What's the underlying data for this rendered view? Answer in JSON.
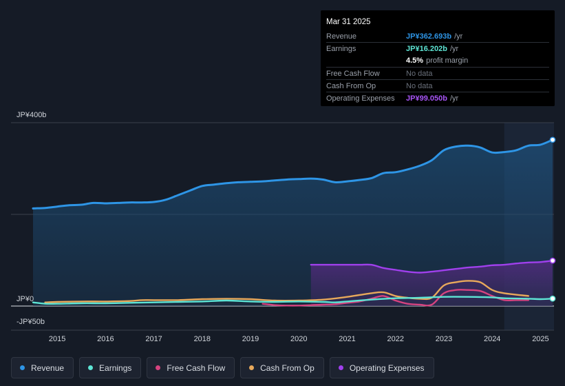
{
  "chart_data": {
    "type": "line",
    "y_unit_labels": [
      "JP¥400b",
      "JP¥0",
      "-JP¥50b"
    ],
    "ylim": [
      -50,
      400
    ],
    "xlim": [
      2014.5,
      2025.25
    ],
    "x_tick_labels": [
      "2015",
      "2016",
      "2017",
      "2018",
      "2019",
      "2020",
      "2021",
      "2022",
      "2023",
      "2024",
      "2025"
    ],
    "x_ticks": [
      2015,
      2016,
      2017,
      2018,
      2019,
      2020,
      2021,
      2022,
      2023,
      2024,
      2025
    ],
    "highlight_start": 2024.25,
    "series": [
      {
        "name": "Revenue",
        "color": "#2e95e6",
        "area": true,
        "points": [
          [
            2014.5,
            213
          ],
          [
            2014.75,
            214
          ],
          [
            2015.0,
            217
          ],
          [
            2015.25,
            220
          ],
          [
            2015.5,
            221
          ],
          [
            2015.75,
            225
          ],
          [
            2016.0,
            224
          ],
          [
            2016.25,
            225
          ],
          [
            2016.5,
            226
          ],
          [
            2016.75,
            226
          ],
          [
            2017.0,
            227
          ],
          [
            2017.25,
            232
          ],
          [
            2017.5,
            242
          ],
          [
            2017.75,
            252
          ],
          [
            2018.0,
            262
          ],
          [
            2018.25,
            265
          ],
          [
            2018.5,
            268
          ],
          [
            2018.75,
            270
          ],
          [
            2019.0,
            271
          ],
          [
            2019.25,
            272
          ],
          [
            2019.5,
            274
          ],
          [
            2019.75,
            276
          ],
          [
            2020.0,
            277
          ],
          [
            2020.25,
            278
          ],
          [
            2020.5,
            276
          ],
          [
            2020.75,
            270
          ],
          [
            2021.0,
            272
          ],
          [
            2021.25,
            275
          ],
          [
            2021.5,
            279
          ],
          [
            2021.75,
            290
          ],
          [
            2022.0,
            292
          ],
          [
            2022.25,
            298
          ],
          [
            2022.5,
            306
          ],
          [
            2022.75,
            318
          ],
          [
            2023.0,
            340
          ],
          [
            2023.25,
            348
          ],
          [
            2023.5,
            350
          ],
          [
            2023.75,
            346
          ],
          [
            2024.0,
            335
          ],
          [
            2024.25,
            336
          ],
          [
            2024.5,
            340
          ],
          [
            2024.75,
            350
          ],
          [
            2025.0,
            352
          ],
          [
            2025.25,
            362.693
          ]
        ]
      },
      {
        "name": "Earnings",
        "color": "#5ee5d5",
        "area": false,
        "points": [
          [
            2014.5,
            8
          ],
          [
            2014.75,
            5
          ],
          [
            2015.0,
            5
          ],
          [
            2015.5,
            6
          ],
          [
            2016.0,
            6
          ],
          [
            2016.5,
            7
          ],
          [
            2017.0,
            8
          ],
          [
            2017.5,
            9
          ],
          [
            2018.0,
            10
          ],
          [
            2018.5,
            12
          ],
          [
            2019.0,
            10
          ],
          [
            2019.5,
            9
          ],
          [
            2020.0,
            10
          ],
          [
            2020.5,
            9
          ],
          [
            2020.75,
            8
          ],
          [
            2021.0,
            10
          ],
          [
            2021.5,
            14
          ],
          [
            2022.0,
            17
          ],
          [
            2022.5,
            18
          ],
          [
            2023.0,
            20
          ],
          [
            2023.5,
            20
          ],
          [
            2024.0,
            19
          ],
          [
            2024.25,
            17
          ],
          [
            2024.75,
            16
          ],
          [
            2025.0,
            15
          ],
          [
            2025.25,
            16.202
          ]
        ]
      },
      {
        "name": "Free Cash Flow",
        "color": "#d6437f",
        "area": false,
        "points": [
          [
            2019.25,
            5
          ],
          [
            2019.5,
            2
          ],
          [
            2019.75,
            1
          ],
          [
            2020.0,
            1
          ],
          [
            2020.25,
            2
          ],
          [
            2020.5,
            3
          ],
          [
            2020.75,
            4
          ],
          [
            2021.0,
            7
          ],
          [
            2021.25,
            10
          ],
          [
            2021.5,
            16
          ],
          [
            2021.75,
            22
          ],
          [
            2022.0,
            12
          ],
          [
            2022.25,
            5
          ],
          [
            2022.5,
            3
          ],
          [
            2022.75,
            3
          ],
          [
            2023.0,
            28
          ],
          [
            2023.25,
            35
          ],
          [
            2023.5,
            35
          ],
          [
            2023.75,
            33
          ],
          [
            2024.0,
            22
          ],
          [
            2024.25,
            13
          ],
          [
            2024.5,
            13
          ],
          [
            2024.75,
            13
          ]
        ]
      },
      {
        "name": "Cash From Op",
        "color": "#e8a95b",
        "area": false,
        "points": [
          [
            2014.75,
            8
          ],
          [
            2015.0,
            9
          ],
          [
            2015.5,
            10
          ],
          [
            2016.0,
            10
          ],
          [
            2016.5,
            11
          ],
          [
            2016.75,
            13
          ],
          [
            2017.0,
            13
          ],
          [
            2017.5,
            13
          ],
          [
            2018.0,
            15
          ],
          [
            2018.5,
            16
          ],
          [
            2019.0,
            15
          ],
          [
            2019.5,
            12
          ],
          [
            2020.0,
            12
          ],
          [
            2020.5,
            14
          ],
          [
            2021.0,
            20
          ],
          [
            2021.5,
            28
          ],
          [
            2021.75,
            30
          ],
          [
            2022.0,
            22
          ],
          [
            2022.25,
            18
          ],
          [
            2022.5,
            16
          ],
          [
            2022.75,
            18
          ],
          [
            2023.0,
            45
          ],
          [
            2023.25,
            52
          ],
          [
            2023.5,
            55
          ],
          [
            2023.75,
            52
          ],
          [
            2024.0,
            35
          ],
          [
            2024.25,
            28
          ],
          [
            2024.75,
            22
          ]
        ]
      },
      {
        "name": "Operating Expenses",
        "color": "#a040ed",
        "area": true,
        "points": [
          [
            2020.25,
            90
          ],
          [
            2020.5,
            90
          ],
          [
            2020.75,
            90
          ],
          [
            2021.0,
            90
          ],
          [
            2021.25,
            90
          ],
          [
            2021.5,
            90
          ],
          [
            2021.75,
            83
          ],
          [
            2022.0,
            79
          ],
          [
            2022.25,
            75
          ],
          [
            2022.5,
            73
          ],
          [
            2022.75,
            75
          ],
          [
            2023.0,
            78
          ],
          [
            2023.25,
            81
          ],
          [
            2023.5,
            84
          ],
          [
            2023.75,
            86
          ],
          [
            2024.0,
            89
          ],
          [
            2024.25,
            90
          ],
          [
            2024.5,
            93
          ],
          [
            2024.75,
            95
          ],
          [
            2025.0,
            96
          ],
          [
            2025.25,
            99.05
          ]
        ]
      }
    ]
  },
  "tooltip": {
    "date": "Mar 31 2025",
    "rows": [
      {
        "label": "Revenue",
        "value": "JP¥362.693b",
        "unit": "/yr",
        "color": "#2e95e6"
      },
      {
        "label": "Earnings",
        "value": "JP¥16.202b",
        "unit": "/yr",
        "color": "#5ee5d5"
      },
      {
        "label": "",
        "value": "4.5%",
        "unit": "profit margin",
        "color": "#ffffff"
      },
      {
        "label": "Free Cash Flow",
        "value": "No data",
        "unit": "",
        "color": ""
      },
      {
        "label": "Cash From Op",
        "value": "No data",
        "unit": "",
        "color": ""
      },
      {
        "label": "Operating Expenses",
        "value": "JP¥99.050b",
        "unit": "/yr",
        "color": "#a855f7"
      }
    ]
  },
  "legend": [
    {
      "label": "Revenue",
      "color": "#2e95e6"
    },
    {
      "label": "Earnings",
      "color": "#5ee5d5"
    },
    {
      "label": "Free Cash Flow",
      "color": "#d6437f"
    },
    {
      "label": "Cash From Op",
      "color": "#e8a95b"
    },
    {
      "label": "Operating Expenses",
      "color": "#a040ed"
    }
  ]
}
